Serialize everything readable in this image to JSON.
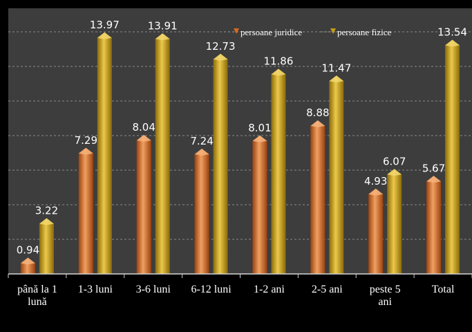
{
  "chart_data": {
    "type": "bar",
    "categories": [
      [
        "până la 1",
        "lună"
      ],
      [
        "1-3 luni"
      ],
      [
        "3-6 luni"
      ],
      [
        "6-12 luni"
      ],
      [
        "1-2 ani"
      ],
      [
        "2-5 ani"
      ],
      [
        "peste 5",
        "ani"
      ],
      [
        "Total"
      ]
    ],
    "series": [
      {
        "name": "persoane juridice",
        "color": "#d9691f",
        "values": [
          0.94,
          7.29,
          8.04,
          7.24,
          8.01,
          8.88,
          4.93,
          5.67
        ],
        "labels": [
          "0.94",
          "7.29",
          "8.04",
          "7.24",
          "8.01",
          "8.88",
          "4.93",
          "5.67"
        ]
      },
      {
        "name": "persoane fizice",
        "color": "#c49a12",
        "values": [
          3.22,
          13.97,
          13.91,
          12.73,
          11.86,
          11.47,
          6.07,
          13.54
        ],
        "labels": [
          "3.22",
          "13.97",
          "13.91",
          "12.73",
          "11.86",
          "11.47",
          "6.07",
          "13.54"
        ]
      }
    ],
    "ylim": [
      0,
      16
    ],
    "grid": true,
    "legend_position": "top-right"
  }
}
